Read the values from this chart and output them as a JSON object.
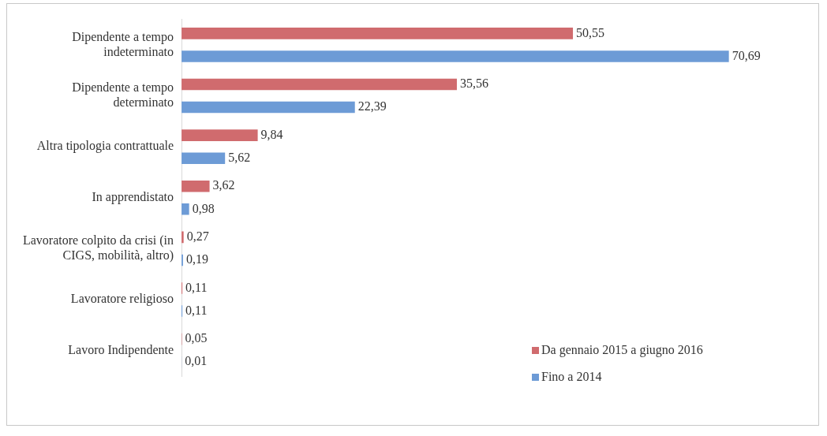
{
  "chart_data": {
    "type": "bar",
    "orientation": "horizontal",
    "categories": [
      "Dipendente a tempo indeterminato",
      "Dipendente a tempo determinato",
      "Altra tipologia contrattuale",
      "In apprendistato",
      "Lavoratore colpito da crisi (in CIGS, mobilità, altro)",
      "Lavoratore religioso",
      "Lavoro Indipendente"
    ],
    "series": [
      {
        "name": "Da gennaio 2015 a giugno 2016",
        "color": "#d06b6e",
        "values": [
          50.55,
          35.56,
          9.84,
          3.62,
          0.27,
          0.11,
          0.05
        ],
        "value_labels": [
          "50,55",
          "35,56",
          "9,84",
          "3,62",
          "0,27",
          "0,11",
          "0,05"
        ]
      },
      {
        "name": "Fino a 2014",
        "color": "#6d9bd6",
        "values": [
          70.69,
          22.39,
          5.62,
          0.98,
          0.19,
          0.11,
          0.01
        ],
        "value_labels": [
          "70,69",
          "22,39",
          "5,62",
          "0,98",
          "0,19",
          "0,11",
          "0,01"
        ]
      }
    ],
    "tick_labels": "y",
    "grid": false,
    "legend": "bottom right"
  }
}
